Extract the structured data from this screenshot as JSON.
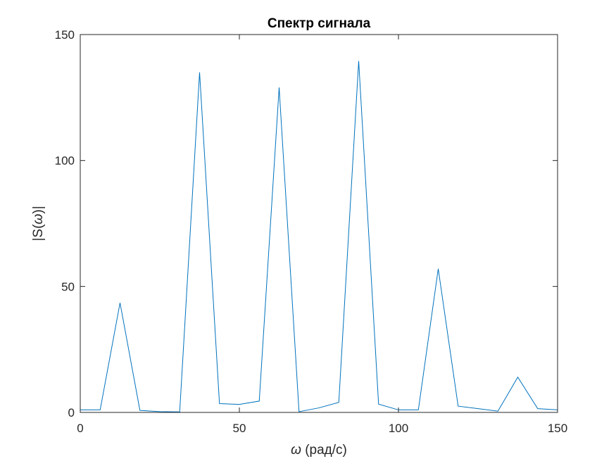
{
  "chart_data": {
    "type": "line",
    "title": "Спектр сигнала",
    "xlabel": {
      "symbol": "ω",
      "text": " (рад/с)"
    },
    "ylabel": {
      "prefix": "|S(",
      "symbol": "ω",
      "suffix": ")|"
    },
    "xlim": [
      0,
      150
    ],
    "ylim": [
      0,
      150
    ],
    "xticks": [
      0,
      50,
      100,
      150
    ],
    "yticks": [
      0,
      50,
      100,
      150
    ],
    "grid": false,
    "series": [
      {
        "color": "#0072BD",
        "x": [
          0,
          6.25,
          12.5,
          18.75,
          25,
          31.25,
          37.5,
          43.75,
          50,
          56.25,
          62.5,
          68.75,
          75,
          81.25,
          87.5,
          93.75,
          100,
          106.25,
          112.5,
          118.75,
          125,
          131.25,
          137.5,
          143.75,
          150
        ],
        "y": [
          1.0,
          1.0,
          43.5,
          0.8,
          0.3,
          0.2,
          135,
          3.5,
          3.2,
          4.5,
          129,
          0.3,
          1.8,
          4.0,
          139.5,
          3.3,
          1.0,
          1.0,
          57,
          2.5,
          1.5,
          0.5,
          14,
          1.5,
          1.0
        ]
      }
    ]
  }
}
